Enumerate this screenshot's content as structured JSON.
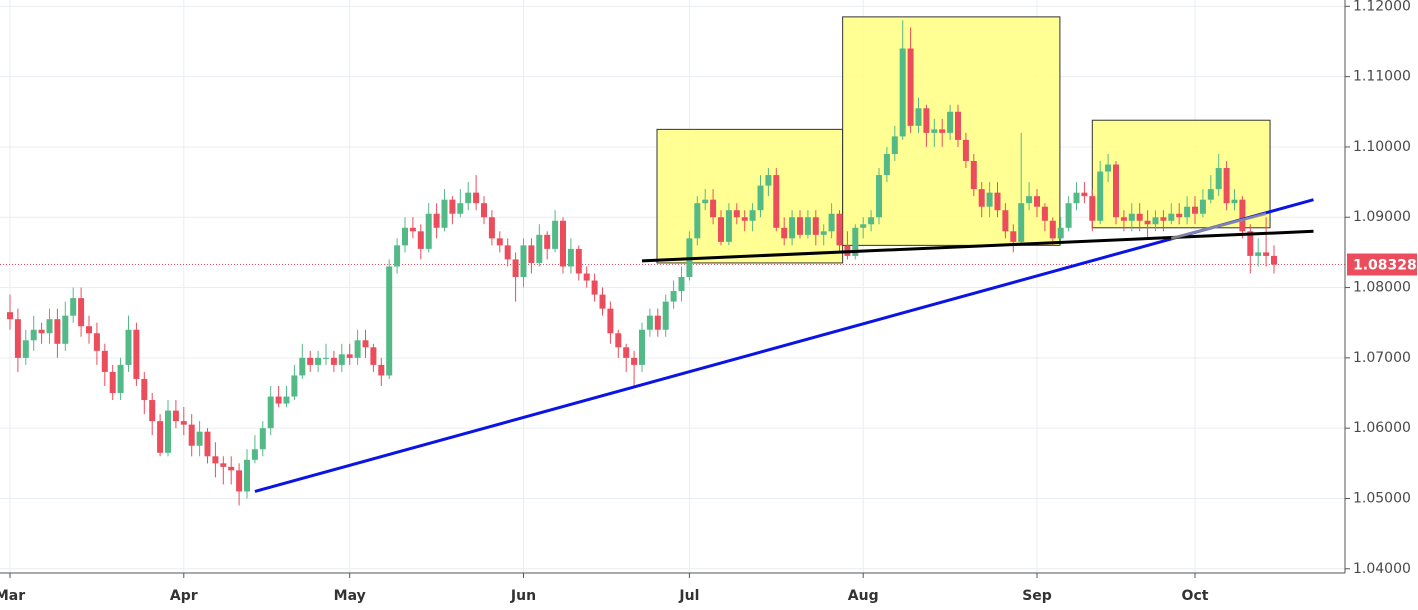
{
  "chart_data": {
    "type": "candlestick",
    "categories": [
      "Mar",
      null,
      null,
      null,
      null,
      null,
      null,
      null,
      null,
      null,
      null,
      null,
      null,
      null,
      null,
      null,
      null,
      null,
      null,
      null,
      null,
      null,
      "Apr",
      null,
      null,
      null,
      null,
      null,
      null,
      null,
      null,
      null,
      null,
      null,
      null,
      null,
      null,
      null,
      null,
      null,
      null,
      null,
      null,
      "May",
      null,
      null,
      null,
      null,
      null,
      null,
      null,
      null,
      null,
      null,
      null,
      null,
      null,
      null,
      null,
      null,
      null,
      null,
      null,
      null,
      null,
      "Jun",
      null,
      null,
      null,
      null,
      null,
      null,
      null,
      null,
      null,
      null,
      null,
      null,
      null,
      null,
      null,
      null,
      null,
      null,
      null,
      null,
      "Jul",
      null,
      null,
      null,
      null,
      null,
      null,
      null,
      null,
      null,
      null,
      null,
      null,
      null,
      null,
      null,
      null,
      null,
      null,
      null,
      null,
      null,
      "Aug",
      null,
      null,
      null,
      null,
      null,
      null,
      null,
      null,
      null,
      null,
      null,
      null,
      null,
      null,
      null,
      null,
      null,
      null,
      null,
      null,
      null,
      "Sep",
      null,
      null,
      null,
      null,
      null,
      null,
      null,
      null,
      null,
      null,
      null,
      null,
      null,
      null,
      null,
      null,
      null,
      null,
      null,
      "Oct",
      null,
      null,
      null,
      null,
      null,
      null,
      null,
      null,
      null,
      null
    ],
    "up_color": "#53b987",
    "down_color": "#eb4d5c",
    "open": [
      1.0765,
      1.0755,
      1.07,
      1.0725,
      1.074,
      1.0735,
      1.0755,
      1.072,
      1.076,
      1.0785,
      1.0745,
      1.0735,
      1.071,
      1.068,
      1.065,
      1.069,
      1.074,
      1.067,
      1.064,
      1.061,
      1.0565,
      1.0625,
      1.061,
      1.0605,
      1.0575,
      1.0595,
      1.056,
      1.055,
      1.0545,
      1.054,
      1.051,
      1.0555,
      1.057,
      1.06,
      1.0645,
      1.0635,
      1.0645,
      1.0675,
      1.07,
      1.069,
      1.07,
      1.07,
      1.069,
      1.0705,
      1.07,
      1.0725,
      1.0715,
      1.069,
      1.0675,
      1.083,
      1.086,
      1.0885,
      1.088,
      1.0855,
      1.0905,
      1.0885,
      1.0925,
      1.0905,
      1.092,
      1.0935,
      1.092,
      1.09,
      1.087,
      1.086,
      1.084,
      1.0815,
      1.086,
      1.0835,
      1.0875,
      1.0855,
      1.0895,
      1.083,
      1.0855,
      1.082,
      1.081,
      1.079,
      1.077,
      1.0735,
      1.0715,
      1.07,
      1.069,
      1.074,
      1.076,
      1.074,
      1.078,
      1.0795,
      1.0815,
      1.087,
      1.092,
      1.0925,
      1.09,
      1.0865,
      1.091,
      1.09,
      1.0895,
      1.091,
      1.0945,
      1.096,
      1.0885,
      1.087,
      1.09,
      1.0875,
      1.09,
      1.0875,
      1.088,
      1.0905,
      1.086,
      1.0845,
      1.0885,
      1.089,
      1.09,
      1.096,
      1.099,
      1.1015,
      1.114,
      1.103,
      1.1055,
      1.102,
      1.1025,
      1.102,
      1.105,
      1.101,
      1.098,
      1.094,
      1.0915,
      1.0935,
      1.091,
      1.088,
      1.0865,
      1.092,
      1.093,
      1.0915,
      1.0895,
      1.087,
      1.0885,
      1.092,
      1.0935,
      1.093,
      1.0895,
      1.0965,
      1.0975,
      1.09,
      1.0895,
      1.0905,
      1.0895,
      1.089,
      1.09,
      1.0895,
      1.0905,
      1.09,
      1.0915,
      1.0905,
      1.0925,
      1.094,
      1.097,
      1.092,
      1.0925,
      1.088,
      1.0845,
      1.085,
      1.0845
    ],
    "high": [
      1.079,
      1.077,
      1.074,
      1.076,
      1.075,
      1.077,
      1.077,
      1.078,
      1.08,
      1.08,
      1.076,
      1.075,
      1.072,
      1.069,
      1.07,
      1.076,
      1.075,
      1.068,
      1.065,
      1.062,
      1.064,
      1.064,
      1.063,
      1.062,
      1.061,
      1.06,
      1.058,
      1.056,
      1.056,
      1.055,
      1.057,
      1.059,
      1.061,
      1.066,
      1.066,
      1.066,
      1.069,
      1.072,
      1.071,
      1.071,
      1.072,
      1.071,
      1.072,
      1.072,
      1.074,
      1.074,
      1.072,
      1.07,
      1.084,
      1.087,
      1.09,
      1.09,
      1.089,
      1.092,
      1.092,
      1.094,
      1.093,
      1.094,
      1.095,
      1.096,
      1.093,
      1.091,
      1.088,
      1.087,
      1.085,
      1.087,
      1.087,
      1.089,
      1.088,
      1.091,
      1.09,
      1.087,
      1.086,
      1.083,
      1.082,
      1.08,
      1.078,
      1.074,
      1.072,
      1.071,
      1.075,
      1.077,
      1.077,
      1.079,
      1.081,
      1.083,
      1.088,
      1.093,
      1.094,
      1.094,
      1.091,
      1.092,
      1.092,
      1.091,
      1.092,
      1.096,
      1.097,
      1.097,
      1.09,
      1.091,
      1.091,
      1.091,
      1.091,
      1.089,
      1.092,
      1.091,
      1.088,
      1.089,
      1.09,
      1.091,
      1.097,
      1.1,
      1.103,
      1.118,
      1.117,
      1.107,
      1.106,
      1.104,
      1.104,
      1.106,
      1.106,
      1.102,
      1.099,
      1.095,
      1.095,
      1.095,
      1.092,
      1.089,
      1.102,
      1.095,
      1.094,
      1.092,
      1.09,
      1.09,
      1.093,
      1.095,
      1.095,
      1.094,
      1.098,
      1.099,
      1.098,
      1.091,
      1.092,
      1.092,
      1.091,
      1.091,
      1.091,
      1.092,
      1.092,
      1.093,
      1.093,
      1.094,
      1.096,
      1.099,
      1.098,
      1.094,
      1.093,
      1.089,
      1.087,
      1.09,
      1.086
    ],
    "low": [
      1.074,
      1.068,
      1.069,
      1.071,
      1.072,
      1.072,
      1.07,
      1.071,
      1.075,
      1.073,
      1.072,
      1.069,
      1.066,
      1.064,
      1.064,
      1.068,
      1.066,
      1.062,
      1.059,
      1.056,
      1.056,
      1.06,
      1.059,
      1.056,
      1.056,
      1.055,
      1.053,
      1.052,
      1.052,
      1.049,
      1.05,
      1.055,
      1.056,
      1.059,
      1.063,
      1.063,
      1.064,
      1.067,
      1.068,
      1.068,
      1.069,
      1.068,
      1.068,
      1.069,
      1.069,
      1.07,
      1.068,
      1.066,
      1.067,
      1.082,
      1.085,
      1.087,
      1.084,
      1.085,
      1.087,
      1.088,
      1.089,
      1.09,
      1.091,
      1.091,
      1.089,
      1.086,
      1.085,
      1.083,
      1.078,
      1.08,
      1.082,
      1.083,
      1.084,
      1.085,
      1.082,
      1.082,
      1.081,
      1.08,
      1.078,
      1.076,
      1.072,
      1.07,
      1.068,
      1.066,
      1.068,
      1.073,
      1.073,
      1.073,
      1.077,
      1.078,
      1.081,
      1.086,
      1.091,
      1.089,
      1.086,
      1.086,
      1.089,
      1.088,
      1.088,
      1.09,
      1.093,
      1.088,
      1.086,
      1.086,
      1.087,
      1.087,
      1.086,
      1.086,
      1.087,
      1.085,
      1.084,
      1.084,
      1.087,
      1.088,
      1.089,
      1.095,
      1.098,
      1.101,
      1.102,
      1.102,
      1.1,
      1.1,
      1.1,
      1.101,
      1.1,
      1.097,
      1.093,
      1.09,
      1.09,
      1.09,
      1.087,
      1.085,
      1.086,
      1.091,
      1.09,
      1.088,
      1.086,
      1.086,
      1.088,
      1.091,
      1.092,
      1.088,
      1.089,
      1.095,
      1.089,
      1.088,
      1.088,
      1.088,
      1.087,
      1.088,
      1.088,
      1.089,
      1.089,
      1.089,
      1.089,
      1.09,
      1.092,
      1.093,
      1.091,
      1.091,
      1.087,
      1.082,
      1.083,
      1.083,
      1.082
    ],
    "close": [
      1.0755,
      1.07,
      1.0725,
      1.074,
      1.0735,
      1.0755,
      1.072,
      1.076,
      1.0785,
      1.0745,
      1.0735,
      1.071,
      1.068,
      1.065,
      1.069,
      1.074,
      1.067,
      1.064,
      1.061,
      1.0565,
      1.0625,
      1.061,
      1.0605,
      1.0575,
      1.0595,
      1.056,
      1.055,
      1.0545,
      1.054,
      1.051,
      1.0555,
      1.057,
      1.06,
      1.0645,
      1.0635,
      1.0645,
      1.0675,
      1.07,
      1.069,
      1.07,
      1.07,
      1.069,
      1.0705,
      1.07,
      1.0725,
      1.0715,
      1.069,
      1.0675,
      1.083,
      1.086,
      1.0885,
      1.088,
      1.0855,
      1.0905,
      1.0885,
      1.0925,
      1.0905,
      1.092,
      1.0935,
      1.092,
      1.09,
      1.087,
      1.086,
      1.084,
      1.0815,
      1.086,
      1.0835,
      1.0875,
      1.0855,
      1.0895,
      1.083,
      1.0855,
      1.082,
      1.081,
      1.079,
      1.077,
      1.0735,
      1.0715,
      1.07,
      1.069,
      1.074,
      1.076,
      1.074,
      1.078,
      1.0795,
      1.0815,
      1.087,
      1.092,
      1.0925,
      1.09,
      1.0865,
      1.091,
      1.09,
      1.0895,
      1.091,
      1.0945,
      1.096,
      1.0885,
      1.087,
      1.09,
      1.0875,
      1.09,
      1.0875,
      1.088,
      1.0905,
      1.086,
      1.0845,
      1.0885,
      1.089,
      1.09,
      1.096,
      1.099,
      1.1015,
      1.114,
      1.103,
      1.1055,
      1.102,
      1.1025,
      1.102,
      1.105,
      1.101,
      1.098,
      1.094,
      1.0915,
      1.0935,
      1.091,
      1.088,
      1.0865,
      1.092,
      1.093,
      1.0915,
      1.0895,
      1.087,
      1.0885,
      1.092,
      1.0935,
      1.093,
      1.0895,
      1.0965,
      1.0975,
      1.09,
      1.0895,
      1.0905,
      1.0895,
      1.089,
      1.09,
      1.0895,
      1.0905,
      1.09,
      1.0915,
      1.0905,
      1.0925,
      1.094,
      1.097,
      1.092,
      1.0925,
      1.088,
      1.0845,
      1.085,
      1.0845,
      1.08328
    ],
    "last_price": 1.08328,
    "last_price_color": "#eb4d5c",
    "ylim": [
      1.0394,
      1.1209
    ],
    "yticks": [
      {
        "value": 1.04,
        "label": "1.04000"
      },
      {
        "value": 1.05,
        "label": "1.05000"
      },
      {
        "value": 1.06,
        "label": "1.06000"
      },
      {
        "value": 1.07,
        "label": "1.07000"
      },
      {
        "value": 1.08,
        "label": "1.08000"
      },
      {
        "value": 1.09,
        "label": "1.09000"
      },
      {
        "value": 1.1,
        "label": "1.10000"
      },
      {
        "value": 1.11,
        "label": "1.11000"
      },
      {
        "value": 1.12,
        "label": "1.12000"
      }
    ],
    "grid": true,
    "boxes": [
      {
        "color": "#ffff80",
        "x": [
          81.9,
          105.4
        ],
        "y": [
          1.0835,
          1.1025
        ]
      },
      {
        "color": "#ffff80",
        "x": [
          105.4,
          132.9
        ],
        "y": [
          1.086,
          1.1185
        ]
      },
      {
        "color": "#ffff80",
        "x": [
          137.0,
          159.5
        ],
        "y": [
          1.0885,
          1.1038
        ]
      }
    ],
    "trendlines": [
      {
        "color": "#0a14e6",
        "x": [
          31,
          165
        ],
        "y": [
          1.051,
          1.0925
        ]
      },
      {
        "color": "#000000",
        "x": [
          80,
          165
        ],
        "y": [
          1.0838,
          1.088
        ]
      },
      {
        "color": "#9e9e9e",
        "x": [
          147,
          159
        ],
        "y": [
          1.087,
          1.0905
        ]
      }
    ]
  }
}
